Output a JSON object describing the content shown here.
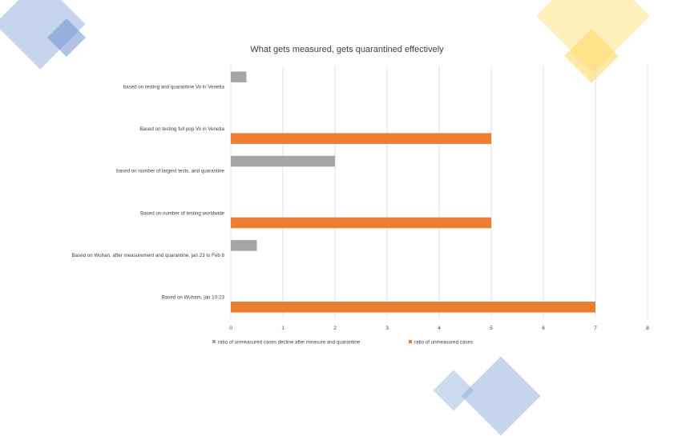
{
  "decor_colors": {
    "blue": "#8eaadb",
    "blue_dark": "#6f8fd0",
    "yellow": "#ffe699",
    "yellow_dark": "#ffd966"
  },
  "chart_data": {
    "type": "bar",
    "orientation": "horizontal",
    "title": "What gets measured, gets quarantined effectively",
    "categories": [
      "based on testing and quarantine Vo in Venetia",
      "Based on testing full pop Vo in Venetia",
      "based on number of largest tests, and quarantine",
      "Based on number of testing worldwide",
      "Based on Wuhan, after measurement and quarantine, jan 23 to Feb 8",
      "Based on Wuham, jan 10-23"
    ],
    "series": [
      {
        "name": "ratio of unmeasured cases decline after measure and quarantine",
        "color": "#a5a5a5",
        "values": [
          0.3,
          null,
          2,
          null,
          0.5,
          null
        ]
      },
      {
        "name": "ratio of  unmeasured cases",
        "color": "#ed7d31",
        "values": [
          null,
          5,
          null,
          5,
          null,
          7
        ]
      }
    ],
    "xlim": [
      0,
      8
    ],
    "xticks": [
      "0",
      "1",
      "2",
      "3",
      "4",
      "5",
      "6",
      "7",
      "8"
    ],
    "grid": true,
    "legend_position": "bottom"
  }
}
